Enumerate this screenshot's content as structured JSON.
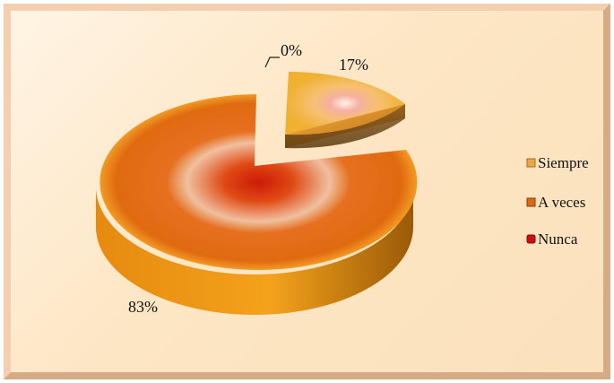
{
  "chart_data": {
    "type": "pie",
    "style": "3d-exploded",
    "categories": [
      "Siempre",
      "A veces",
      "Nunca"
    ],
    "values": [
      17,
      83,
      0
    ],
    "labels": [
      "17%",
      "83%",
      "0%"
    ],
    "legend_position": "right",
    "title": ""
  },
  "colors": {
    "siempre": "#f0b030",
    "a_veces": "#e06a10",
    "nunca": "#d01010",
    "frame": "#f3cfb0",
    "background": "#fde8c8"
  }
}
